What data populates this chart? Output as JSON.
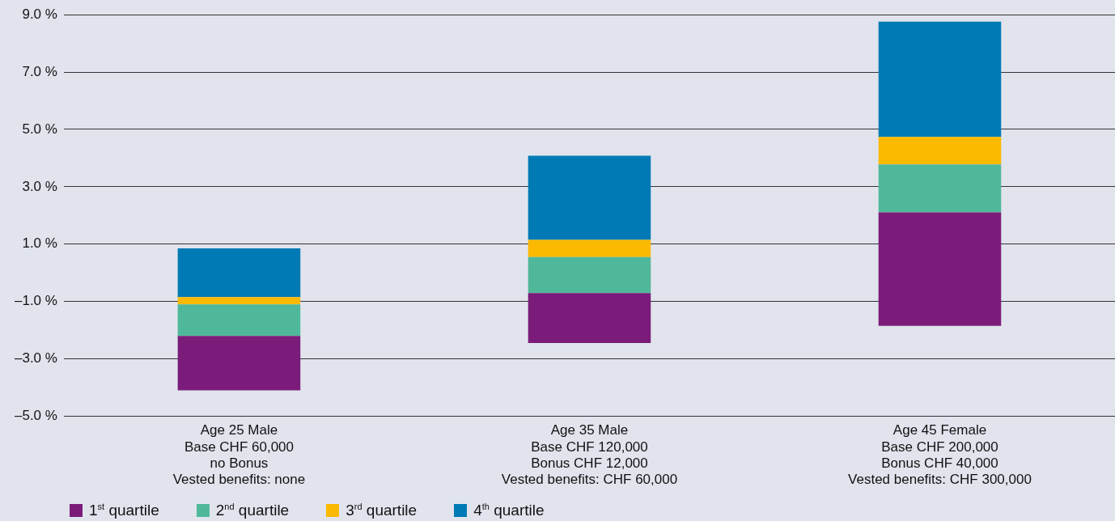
{
  "chart_data": {
    "type": "bar",
    "categories": [
      "Age 25 Male\nBase CHF 60,000\nno Bonus\nVested benefits: none",
      "Age 35 Male\nBase CHF 120,000\nBonus CHF 12,000\nVested benefits: CHF 60,000",
      "Age 45 Female\nBase CHF 200,000\nBonus CHF 40,000\nVested benefits: CHF 300,000"
    ],
    "series": [
      {
        "name": "1$^{st}$ quartile",
        "color": "#7b1c7a",
        "base": [
          -4.1,
          -2.45,
          -1.85
        ],
        "values": [
          1.9,
          1.74,
          3.96
        ]
      },
      {
        "name": "2$^{nd}$ quartile",
        "color": "#50b89a",
        "base": [
          -2.2,
          -0.71,
          2.11
        ],
        "values": [
          1.1,
          1.26,
          1.67
        ]
      },
      {
        "name": "3$^{rd}$ quartile",
        "color": "#fbb900",
        "base": [
          -1.1,
          0.55,
          3.78
        ],
        "values": [
          0.25,
          0.6,
          0.96
        ]
      },
      {
        "name": "4$^{th}$ quartile",
        "color": "#007ab5",
        "base": [
          -0.85,
          1.15,
          4.74
        ],
        "values": [
          1.7,
          2.93,
          4.02
        ]
      }
    ],
    "ylim": [
      -5,
      9
    ],
    "yticks": [
      {
        "value": -5,
        "label": "–5.0 %"
      },
      {
        "value": -3,
        "label": "–3.0 %"
      },
      {
        "value": -1,
        "label": "–1.0 %"
      },
      {
        "value": 1,
        "label": "1.0 %"
      },
      {
        "value": 3,
        "label": "3.0 %"
      },
      {
        "value": 5,
        "label": "5.0 %"
      },
      {
        "value": 7,
        "label": "7.0 %"
      },
      {
        "value": 9,
        "label": "9.0 %"
      }
    ],
    "grid": "y",
    "legend": "bottom left"
  }
}
